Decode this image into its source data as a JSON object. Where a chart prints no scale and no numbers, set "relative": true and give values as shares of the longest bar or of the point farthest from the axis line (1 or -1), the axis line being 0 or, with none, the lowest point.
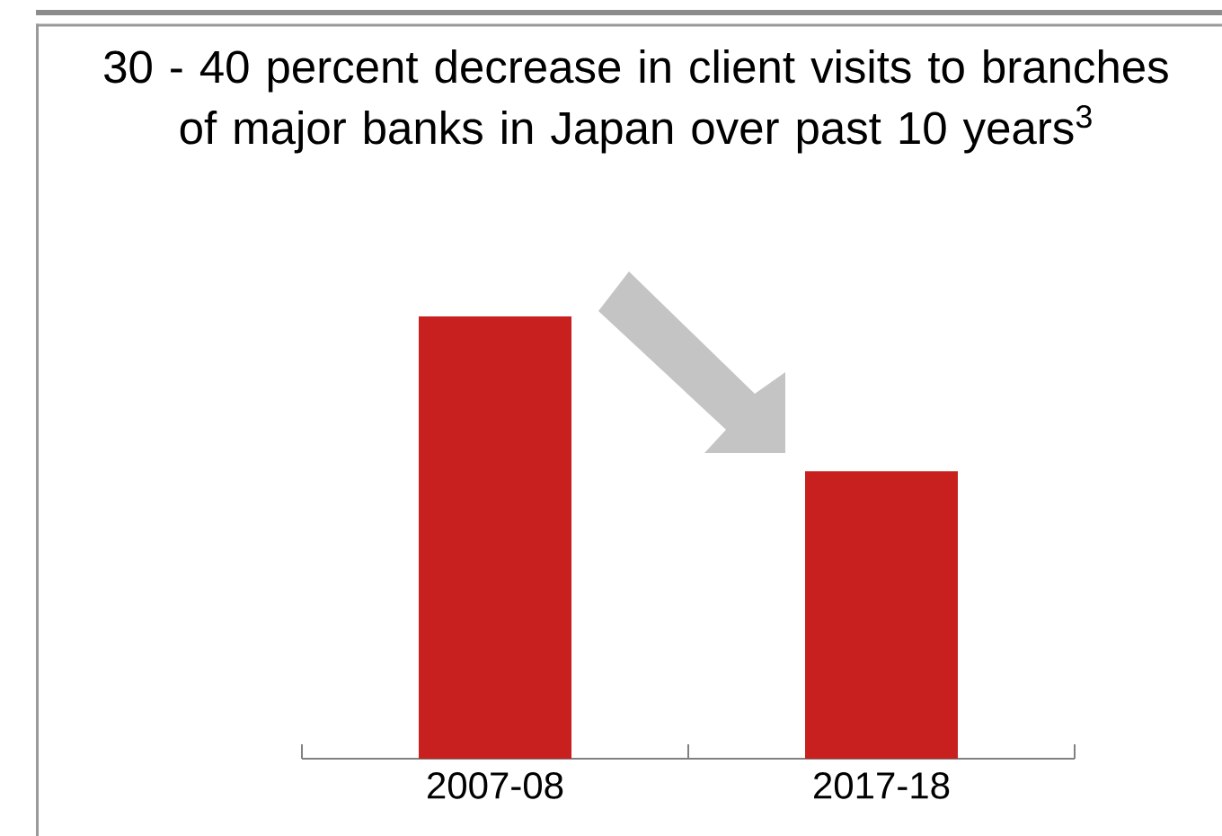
{
  "chart_data": {
    "type": "bar",
    "title": "30 - 40 percent decrease in client visits to branches of major banks in Japan over past 10 years$^{3}$",
    "categories": [
      "2007-08",
      "2017-18"
    ],
    "values": [
      1,
      0.65
    ],
    "color": "#c8201f",
    "relative": true
  }
}
